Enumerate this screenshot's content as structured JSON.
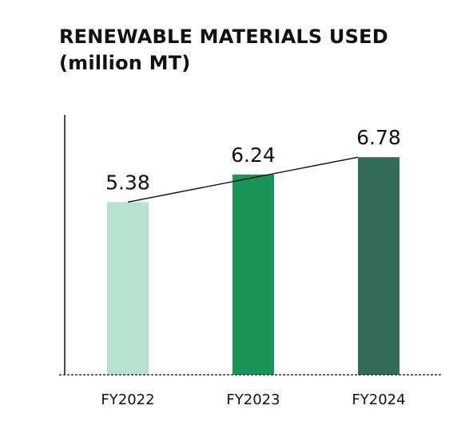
{
  "title_line1": "RENEWABLE MATERIALS USED",
  "title_line2": "(million MT)",
  "chart_data": {
    "type": "bar",
    "title": "RENEWABLE MATERIALS USED (million MT)",
    "categories": [
      "FY2022",
      "FY2023",
      "FY2024"
    ],
    "values": [
      5.38,
      6.24,
      6.78
    ],
    "value_labels": [
      "5.38",
      "6.24",
      "6.78"
    ],
    "colors": [
      "#b8e0cf",
      "#1a9458",
      "#336b5a"
    ],
    "trend_line": true,
    "ylim": [
      0,
      8.1
    ],
    "grid": false,
    "legend": "none"
  }
}
